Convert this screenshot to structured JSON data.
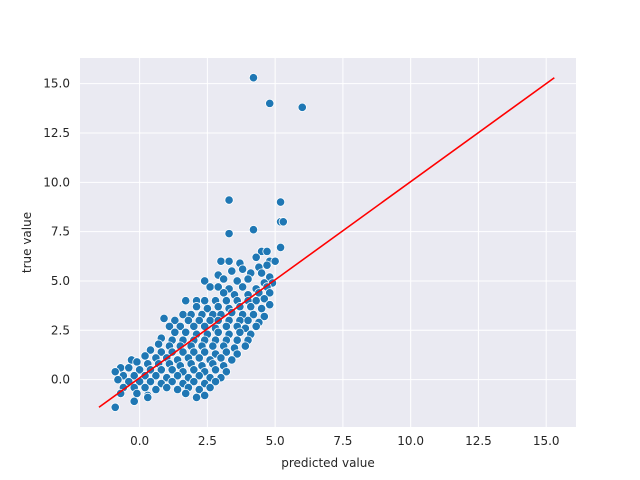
{
  "chart_data": {
    "type": "scatter",
    "title": "",
    "xlabel": "predicted value",
    "ylabel": "true value",
    "xlim": [
      -2.2,
      16.1
    ],
    "ylim": [
      -2.4,
      16.3
    ],
    "xticks": [
      0.0,
      2.5,
      5.0,
      7.5,
      10.0,
      12.5,
      15.0
    ],
    "xtick_labels": [
      "0.0",
      "2.5",
      "5.0",
      "7.5",
      "10.0",
      "12.5",
      "15.0"
    ],
    "yticks": [
      0.0,
      2.5,
      5.0,
      7.5,
      10.0,
      12.5,
      15.0
    ],
    "ytick_labels": [
      "0.0",
      "2.5",
      "5.0",
      "7.5",
      "10.0",
      "12.5",
      "15.0"
    ],
    "grid": true,
    "background": "#eaeaf2",
    "point_color": "#1f77b4",
    "line_color": "#ff0000",
    "reference_line": {
      "x": [
        -1.5,
        15.3
      ],
      "y": [
        -1.4,
        15.3
      ]
    },
    "series": [
      {
        "points": [
          [
            4.2,
            15.3
          ],
          [
            4.8,
            14.0
          ],
          [
            6.0,
            13.8
          ],
          [
            3.3,
            9.1
          ],
          [
            5.2,
            9.0
          ],
          [
            5.2,
            8.0
          ],
          [
            5.3,
            8.0
          ],
          [
            4.2,
            7.6
          ],
          [
            3.3,
            7.4
          ],
          [
            5.2,
            6.7
          ],
          [
            4.5,
            6.5
          ],
          [
            4.7,
            6.5
          ],
          [
            4.3,
            6.2
          ],
          [
            4.8,
            6.0
          ],
          [
            5.0,
            6.0
          ],
          [
            3.0,
            6.0
          ],
          [
            3.3,
            6.0
          ],
          [
            3.7,
            5.9
          ],
          [
            4.4,
            5.7
          ],
          [
            4.7,
            5.8
          ],
          [
            2.9,
            5.3
          ],
          [
            3.4,
            5.5
          ],
          [
            3.8,
            5.6
          ],
          [
            4.1,
            5.4
          ],
          [
            4.5,
            5.4
          ],
          [
            4.8,
            5.2
          ],
          [
            2.4,
            5.0
          ],
          [
            3.1,
            5.1
          ],
          [
            3.6,
            5.0
          ],
          [
            4.0,
            5.1
          ],
          [
            4.6,
            4.9
          ],
          [
            4.9,
            4.9
          ],
          [
            2.6,
            4.7
          ],
          [
            2.9,
            4.7
          ],
          [
            3.3,
            4.6
          ],
          [
            3.8,
            4.7
          ],
          [
            4.3,
            4.6
          ],
          [
            4.7,
            4.7
          ],
          [
            3.1,
            4.4
          ],
          [
            3.5,
            4.3
          ],
          [
            4.0,
            4.3
          ],
          [
            4.4,
            4.4
          ],
          [
            4.8,
            4.4
          ],
          [
            1.7,
            4.0
          ],
          [
            2.1,
            4.0
          ],
          [
            2.4,
            4.0
          ],
          [
            2.8,
            4.0
          ],
          [
            3.2,
            4.0
          ],
          [
            3.6,
            4.0
          ],
          [
            4.0,
            4.0
          ],
          [
            4.3,
            4.0
          ],
          [
            4.6,
            4.1
          ],
          [
            2.1,
            3.7
          ],
          [
            2.5,
            3.6
          ],
          [
            2.9,
            3.7
          ],
          [
            3.3,
            3.6
          ],
          [
            3.7,
            3.7
          ],
          [
            4.1,
            3.7
          ],
          [
            4.5,
            3.6
          ],
          [
            4.8,
            3.8
          ],
          [
            1.6,
            3.3
          ],
          [
            1.9,
            3.3
          ],
          [
            2.3,
            3.3
          ],
          [
            2.7,
            3.3
          ],
          [
            3.0,
            3.3
          ],
          [
            3.4,
            3.4
          ],
          [
            3.8,
            3.3
          ],
          [
            4.2,
            3.3
          ],
          [
            4.6,
            3.2
          ],
          [
            0.9,
            3.1
          ],
          [
            1.3,
            3.0
          ],
          [
            1.8,
            3.0
          ],
          [
            2.2,
            3.0
          ],
          [
            2.6,
            3.0
          ],
          [
            2.9,
            3.0
          ],
          [
            3.3,
            3.0
          ],
          [
            3.7,
            3.0
          ],
          [
            4.0,
            3.0
          ],
          [
            4.4,
            2.9
          ],
          [
            1.1,
            2.7
          ],
          [
            1.5,
            2.7
          ],
          [
            2.0,
            2.7
          ],
          [
            2.4,
            2.7
          ],
          [
            2.8,
            2.6
          ],
          [
            3.2,
            2.7
          ],
          [
            3.6,
            2.7
          ],
          [
            3.9,
            2.6
          ],
          [
            4.3,
            2.7
          ],
          [
            1.3,
            2.4
          ],
          [
            1.7,
            2.4
          ],
          [
            2.1,
            2.3
          ],
          [
            2.5,
            2.3
          ],
          [
            2.9,
            2.4
          ],
          [
            3.3,
            2.3
          ],
          [
            3.7,
            2.4
          ],
          [
            4.1,
            2.3
          ],
          [
            0.8,
            2.1
          ],
          [
            1.2,
            2.0
          ],
          [
            1.6,
            2.0
          ],
          [
            2.0,
            2.0
          ],
          [
            2.4,
            2.0
          ],
          [
            2.8,
            2.0
          ],
          [
            3.2,
            2.0
          ],
          [
            3.6,
            2.0
          ],
          [
            4.0,
            2.0
          ],
          [
            0.7,
            1.8
          ],
          [
            1.1,
            1.7
          ],
          [
            1.5,
            1.7
          ],
          [
            1.9,
            1.7
          ],
          [
            2.3,
            1.7
          ],
          [
            2.7,
            1.7
          ],
          [
            3.1,
            1.7
          ],
          [
            3.5,
            1.6
          ],
          [
            3.9,
            1.7
          ],
          [
            0.4,
            1.5
          ],
          [
            0.8,
            1.4
          ],
          [
            1.2,
            1.4
          ],
          [
            1.6,
            1.4
          ],
          [
            2.0,
            1.4
          ],
          [
            2.4,
            1.4
          ],
          [
            2.8,
            1.3
          ],
          [
            3.2,
            1.4
          ],
          [
            3.6,
            1.3
          ],
          [
            0.2,
            1.2
          ],
          [
            0.6,
            1.1
          ],
          [
            1.0,
            1.1
          ],
          [
            1.4,
            1.0
          ],
          [
            1.8,
            1.1
          ],
          [
            2.2,
            1.1
          ],
          [
            2.6,
            1.0
          ],
          [
            3.0,
            1.1
          ],
          [
            3.4,
            1.0
          ],
          [
            -0.3,
            1.0
          ],
          [
            -0.1,
            0.9
          ],
          [
            0.3,
            0.8
          ],
          [
            0.7,
            0.8
          ],
          [
            1.1,
            0.8
          ],
          [
            1.5,
            0.7
          ],
          [
            1.9,
            0.8
          ],
          [
            2.3,
            0.7
          ],
          [
            2.7,
            0.8
          ],
          [
            3.1,
            0.7
          ],
          [
            -0.7,
            0.6
          ],
          [
            -0.4,
            0.6
          ],
          [
            0.0,
            0.5
          ],
          [
            0.4,
            0.5
          ],
          [
            0.8,
            0.5
          ],
          [
            1.2,
            0.5
          ],
          [
            1.6,
            0.4
          ],
          [
            2.0,
            0.5
          ],
          [
            2.4,
            0.4
          ],
          [
            2.8,
            0.5
          ],
          [
            3.2,
            0.4
          ],
          [
            -0.9,
            0.4
          ],
          [
            -0.6,
            0.2
          ],
          [
            -0.2,
            0.2
          ],
          [
            0.2,
            0.2
          ],
          [
            0.6,
            0.2
          ],
          [
            1.0,
            0.1
          ],
          [
            1.4,
            0.2
          ],
          [
            1.8,
            0.1
          ],
          [
            2.2,
            0.2
          ],
          [
            2.6,
            0.1
          ],
          [
            3.0,
            0.1
          ],
          [
            -0.8,
            0.0
          ],
          [
            -0.4,
            -0.1
          ],
          [
            0.0,
            -0.1
          ],
          [
            0.4,
            -0.1
          ],
          [
            0.8,
            -0.2
          ],
          [
            1.2,
            -0.1
          ],
          [
            1.6,
            -0.2
          ],
          [
            2.0,
            -0.1
          ],
          [
            2.4,
            -0.2
          ],
          [
            2.8,
            -0.1
          ],
          [
            -0.6,
            -0.4
          ],
          [
            -0.2,
            -0.4
          ],
          [
            0.2,
            -0.4
          ],
          [
            0.6,
            -0.5
          ],
          [
            1.0,
            -0.4
          ],
          [
            1.4,
            -0.5
          ],
          [
            1.8,
            -0.4
          ],
          [
            2.2,
            -0.5
          ],
          [
            2.6,
            -0.4
          ],
          [
            -0.7,
            -0.7
          ],
          [
            -0.1,
            -0.7
          ],
          [
            0.3,
            -0.8
          ],
          [
            1.7,
            -0.7
          ],
          [
            2.4,
            -0.8
          ],
          [
            2.1,
            -0.9
          ],
          [
            -0.2,
            -1.1
          ],
          [
            -0.9,
            -1.4
          ],
          [
            0.3,
            -0.9
          ]
        ]
      }
    ]
  }
}
